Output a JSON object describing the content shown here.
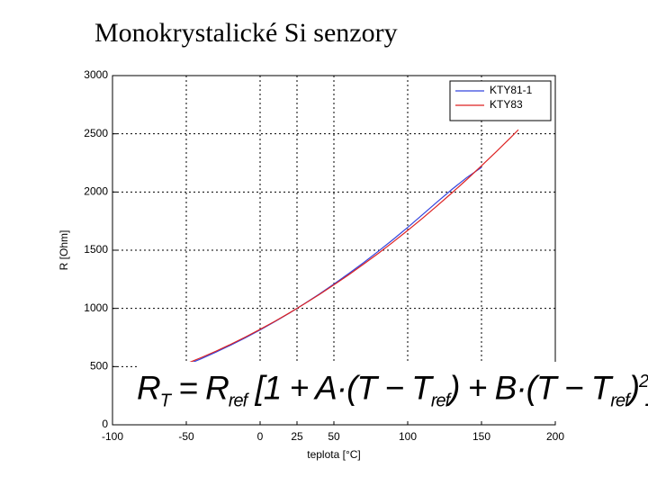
{
  "chart_data": {
    "type": "line",
    "title": "Monokrystalické Si senzory",
    "xlabel": "teplota [°C]",
    "ylabel": "R [Ohm]",
    "xlim": [
      -100,
      200
    ],
    "xticks": [
      -100,
      -50,
      0,
      25,
      50,
      100,
      150,
      200
    ],
    "ylim": [
      0,
      3000
    ],
    "yticks": [
      0,
      500,
      1000,
      1500,
      2000,
      2500,
      3000
    ],
    "grid": true,
    "legend": "upper right",
    "series": [
      {
        "name": "KTY81-1",
        "color": "#3344dd",
        "x": [
          -55,
          -50,
          -40,
          -30,
          -20,
          -10,
          0,
          10,
          20,
          25,
          30,
          40,
          50,
          60,
          70,
          80,
          90,
          100,
          110,
          120,
          130,
          140,
          150
        ],
        "values": [
          490,
          515,
          567,
          624,
          684,
          747,
          815,
          886,
          961,
          1000,
          1040,
          1122,
          1209,
          1299,
          1392,
          1490,
          1591,
          1696,
          1805,
          1915,
          2023,
          2124,
          2211
        ]
      },
      {
        "name": "KTY83",
        "color": "#dd2222",
        "x": [
          -55,
          -50,
          -40,
          -30,
          -20,
          -10,
          0,
          10,
          20,
          25,
          30,
          40,
          50,
          60,
          70,
          80,
          90,
          100,
          110,
          120,
          130,
          140,
          150,
          160,
          170,
          175
        ],
        "values": [
          500,
          525,
          577,
          632,
          691,
          754,
          820,
          889,
          962,
          1000,
          1039,
          1118,
          1202,
          1288,
          1379,
          1472,
          1569,
          1670,
          1774,
          1882,
          1993,
          2107,
          2225,
          2346,
          2471,
          2535
        ]
      }
    ],
    "formula": [
      {
        "text": "R"
      },
      {
        "sub": "T"
      },
      {
        "text": " = R"
      },
      {
        "sub": "ref"
      },
      {
        "text": " [1 + A·(T − T"
      },
      {
        "sub": "ref"
      },
      {
        "text": ") + B·(T − T"
      },
      {
        "sub": "ref"
      },
      {
        "text": ")"
      },
      {
        "sup": "2"
      },
      {
        "text": "],"
      }
    ]
  }
}
